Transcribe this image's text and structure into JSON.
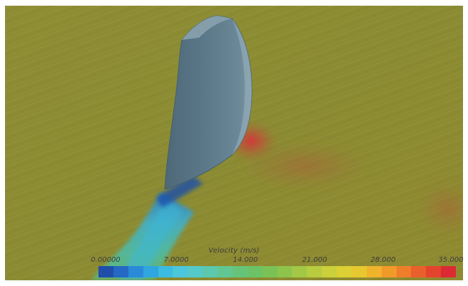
{
  "scene": {
    "subject": "rudder-hull-flow-visualization",
    "background_color": "#8a8a32"
  },
  "legend": {
    "title": "Velocity (m/s)",
    "ticks": [
      "0.00000",
      "7.0000",
      "14.000",
      "21.000",
      "28.000",
      "35.000"
    ],
    "range": [
      0,
      35
    ],
    "colors": [
      "#1f4fa8",
      "#2569c4",
      "#2a8ad8",
      "#30a6e0",
      "#3cbbe0",
      "#4cc6dc",
      "#55c9c8",
      "#5cc8ae",
      "#62c692",
      "#66c47a",
      "#6cc266",
      "#7ac256",
      "#8cc44c",
      "#a2c846",
      "#b8cc40",
      "#ccd03a",
      "#dcd034",
      "#e8c830",
      "#efb42c",
      "#f09a2a",
      "#ee7e2a",
      "#ea602c",
      "#e4442e",
      "#dc2a34"
    ]
  }
}
